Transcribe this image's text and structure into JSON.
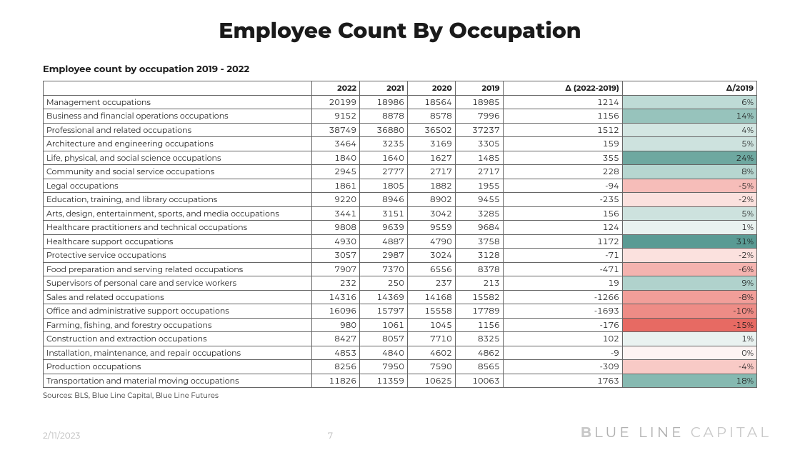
{
  "title": "Employee Count By Occupation",
  "subtitle": "Employee count by occupation 2019 - 2022",
  "headers": {
    "occ": "",
    "y2022": "2022",
    "y2021": "2021",
    "y2020": "2020",
    "y2019": "2019",
    "delta": "Δ (2022-2019)",
    "pct": "Δ/2019"
  },
  "colors": {
    "pos_max": "#5a9b94",
    "pos_mid": "#a7cdc8",
    "pos_low": "#dcebe8",
    "pos_faint": "#edf4f2",
    "neg_max": "#e76a63",
    "neg_mid": "#f3b0ab",
    "neg_low": "#f8d6d3",
    "neg_faint": "#fceeec",
    "neutral": "#ffffff"
  },
  "rows": [
    {
      "occ": "Management occupations",
      "y2022": "20199",
      "y2021": "18986",
      "y2020": "18564",
      "y2019": "18985",
      "delta": "1214",
      "pct": "6%",
      "pct_bg": "#bedbd6"
    },
    {
      "occ": "Business and financial operations occupations",
      "y2022": "9152",
      "y2021": "8878",
      "y2020": "8578",
      "y2019": "7996",
      "delta": "1156",
      "pct": "14%",
      "pct_bg": "#97c3bc"
    },
    {
      "occ": "Professional and related occupations",
      "y2022": "38749",
      "y2021": "36880",
      "y2020": "36502",
      "y2019": "37237",
      "delta": "1512",
      "pct": "4%",
      "pct_bg": "#d3e6e2"
    },
    {
      "occ": "Architecture and engineering occupations",
      "y2022": "3464",
      "y2021": "3235",
      "y2020": "3169",
      "y2019": "3305",
      "delta": "159",
      "pct": "5%",
      "pct_bg": "#cde2de"
    },
    {
      "occ": "Life, physical, and social science occupations",
      "y2022": "1840",
      "y2021": "1640",
      "y2020": "1627",
      "y2019": "1485",
      "delta": "355",
      "pct": "24%",
      "pct_bg": "#6ea8a0"
    },
    {
      "occ": "Community and social service occupations",
      "y2022": "2945",
      "y2021": "2777",
      "y2020": "2717",
      "y2019": "2717",
      "delta": "228",
      "pct": "8%",
      "pct_bg": "#b6d6d0"
    },
    {
      "occ": "Legal occupations",
      "y2022": "1861",
      "y2021": "1805",
      "y2020": "1882",
      "y2019": "1955",
      "delta": "-94",
      "pct": "-5%",
      "pct_bg": "#f6bdb9"
    },
    {
      "occ": "Education, training, and library occupations",
      "y2022": "9220",
      "y2021": "8946",
      "y2020": "8902",
      "y2019": "9455",
      "delta": "-235",
      "pct": "-2%",
      "pct_bg": "#fbe1de"
    },
    {
      "occ": "Arts, design, entertainment, sports, and media occupations",
      "y2022": "3441",
      "y2021": "3151",
      "y2020": "3042",
      "y2019": "3285",
      "delta": "156",
      "pct": "5%",
      "pct_bg": "#cde2de"
    },
    {
      "occ": "Healthcare practitioners and technical occupations",
      "y2022": "9808",
      "y2021": "9639",
      "y2020": "9559",
      "y2019": "9684",
      "delta": "124",
      "pct": "1%",
      "pct_bg": "#e9f2f0"
    },
    {
      "occ": "Healthcare support occupations",
      "y2022": "4930",
      "y2021": "4887",
      "y2020": "4790",
      "y2019": "3758",
      "delta": "1172",
      "pct": "31%",
      "pct_bg": "#5a9b94"
    },
    {
      "occ": "Protective service occupations",
      "y2022": "3057",
      "y2021": "2987",
      "y2020": "3024",
      "y2019": "3128",
      "delta": "-71",
      "pct": "-2%",
      "pct_bg": "#fbe1de"
    },
    {
      "occ": "Food preparation and serving related occupations",
      "y2022": "7907",
      "y2021": "7370",
      "y2020": "6556",
      "y2019": "8378",
      "delta": "-471",
      "pct": "-6%",
      "pct_bg": "#f4b3af"
    },
    {
      "occ": "Supervisors of personal care and service workers",
      "y2022": "232",
      "y2021": "250",
      "y2020": "237",
      "y2019": "213",
      "delta": "19",
      "pct": "9%",
      "pct_bg": "#b0d2cc"
    },
    {
      "occ": "Sales and related occupations",
      "y2022": "14316",
      "y2021": "14369",
      "y2020": "14168",
      "y2019": "15582",
      "delta": "-1266",
      "pct": "-8%",
      "pct_bg": "#f19e99"
    },
    {
      "occ": "Office and administrative support occupations",
      "y2022": "16096",
      "y2021": "15797",
      "y2020": "15558",
      "y2019": "17789",
      "delta": "-1693",
      "pct": "-10%",
      "pct_bg": "#ee8c86"
    },
    {
      "occ": "Farming, fishing, and forestry occupations",
      "y2022": "980",
      "y2021": "1061",
      "y2020": "1045",
      "y2019": "1156",
      "delta": "-176",
      "pct": "-15%",
      "pct_bg": "#e76a63"
    },
    {
      "occ": "Construction and extraction occupations",
      "y2022": "8427",
      "y2021": "8057",
      "y2020": "7710",
      "y2019": "8325",
      "delta": "102",
      "pct": "1%",
      "pct_bg": "#e9f2f0"
    },
    {
      "occ": "Installation, maintenance, and repair occupations",
      "y2022": "4853",
      "y2021": "4840",
      "y2020": "4602",
      "y2019": "4862",
      "delta": "-9",
      "pct": "0%",
      "pct_bg": "#fdf4f3"
    },
    {
      "occ": "Production occupations",
      "y2022": "8256",
      "y2021": "7950",
      "y2020": "7590",
      "y2019": "8565",
      "delta": "-309",
      "pct": "-4%",
      "pct_bg": "#f8cac6"
    },
    {
      "occ": "Transportation and material moving occupations",
      "y2022": "11826",
      "y2021": "11359",
      "y2020": "10625",
      "y2019": "10063",
      "delta": "1763",
      "pct": "18%",
      "pct_bg": "#86b9b1"
    }
  ],
  "sources": "Sources: BLS, Blue Line Capital, Blue Line Futures",
  "footer": {
    "date": "2/11/2023",
    "page": "7",
    "logo_pre": "B",
    "logo_mid": "LUE LINE",
    "logo_post": " CAPITAL"
  }
}
